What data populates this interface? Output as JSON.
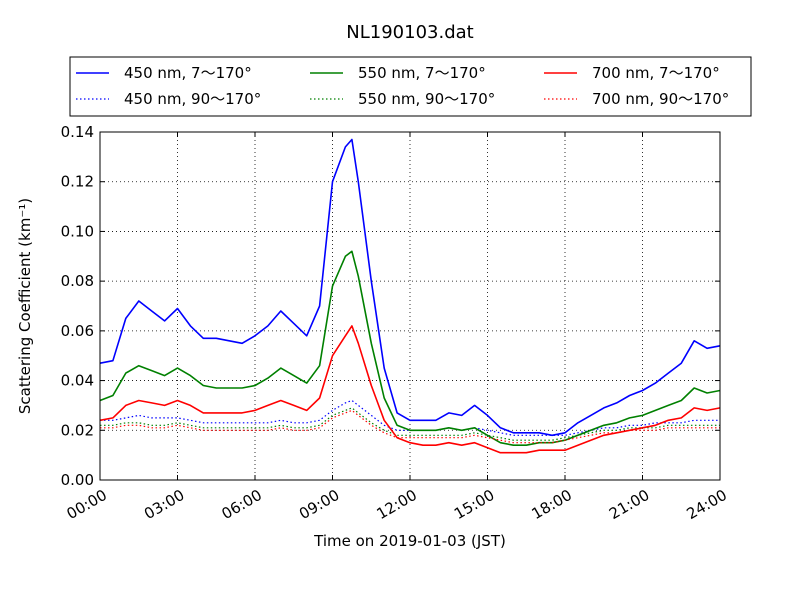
{
  "chart_data": {
    "type": "line",
    "title": "NL190103.dat",
    "xlabel": "Time on 2019-01-03 (JST)",
    "ylabel": "Scattering Coefficient (km⁻¹)",
    "xlim": [
      0,
      24
    ],
    "ylim": [
      0,
      0.14
    ],
    "x_ticks": [
      0,
      3,
      6,
      9,
      12,
      15,
      18,
      21,
      24
    ],
    "x_tick_labels": [
      "00:00",
      "03:00",
      "06:00",
      "09:00",
      "12:00",
      "15:00",
      "18:00",
      "21:00",
      "24:00"
    ],
    "y_ticks": [
      0,
      0.02,
      0.04,
      0.06,
      0.08,
      0.1,
      0.12,
      0.14
    ],
    "y_tick_labels": [
      "0.00",
      "0.02",
      "0.04",
      "0.06",
      "0.08",
      "0.10",
      "0.12",
      "0.14"
    ],
    "grid": true,
    "legend_position": "top",
    "x": [
      0.0,
      0.5,
      1.0,
      1.5,
      2.0,
      2.5,
      3.0,
      3.5,
      4.0,
      4.5,
      5.0,
      5.5,
      6.0,
      6.5,
      7.0,
      7.5,
      8.0,
      8.5,
      9.0,
      9.5,
      9.75,
      10.0,
      10.5,
      11.0,
      11.5,
      12.0,
      12.5,
      13.0,
      13.5,
      14.0,
      14.5,
      15.0,
      15.5,
      16.0,
      16.5,
      17.0,
      17.5,
      18.0,
      18.5,
      19.0,
      19.5,
      20.0,
      20.5,
      21.0,
      21.5,
      22.0,
      22.5,
      23.0,
      23.5,
      24.0
    ],
    "series": [
      {
        "name": "450 nm, 7～170°",
        "color": "#0000ff",
        "dash": "solid",
        "values": [
          0.047,
          0.048,
          0.065,
          0.072,
          0.068,
          0.064,
          0.069,
          0.062,
          0.057,
          0.057,
          0.056,
          0.055,
          0.058,
          0.062,
          0.068,
          0.063,
          0.058,
          0.07,
          0.12,
          0.134,
          0.137,
          0.12,
          0.08,
          0.045,
          0.027,
          0.024,
          0.024,
          0.024,
          0.027,
          0.026,
          0.03,
          0.026,
          0.021,
          0.019,
          0.019,
          0.019,
          0.018,
          0.019,
          0.023,
          0.026,
          0.029,
          0.031,
          0.034,
          0.036,
          0.039,
          0.043,
          0.047,
          0.056,
          0.053,
          0.054
        ]
      },
      {
        "name": "450 nm, 90～170°",
        "color": "#0000ff",
        "dash": "dotted",
        "values": [
          0.024,
          0.024,
          0.025,
          0.026,
          0.025,
          0.025,
          0.025,
          0.024,
          0.023,
          0.023,
          0.023,
          0.023,
          0.023,
          0.023,
          0.024,
          0.023,
          0.023,
          0.024,
          0.028,
          0.031,
          0.032,
          0.03,
          0.026,
          0.022,
          0.02,
          0.02,
          0.02,
          0.02,
          0.021,
          0.02,
          0.021,
          0.02,
          0.019,
          0.018,
          0.018,
          0.018,
          0.018,
          0.018,
          0.019,
          0.02,
          0.021,
          0.021,
          0.022,
          0.022,
          0.023,
          0.023,
          0.023,
          0.024,
          0.024,
          0.024
        ]
      },
      {
        "name": "550 nm, 7～170°",
        "color": "#008000",
        "dash": "solid",
        "values": [
          0.032,
          0.034,
          0.043,
          0.046,
          0.044,
          0.042,
          0.045,
          0.042,
          0.038,
          0.037,
          0.037,
          0.037,
          0.038,
          0.041,
          0.045,
          0.042,
          0.039,
          0.046,
          0.078,
          0.09,
          0.092,
          0.082,
          0.055,
          0.033,
          0.022,
          0.02,
          0.02,
          0.02,
          0.021,
          0.02,
          0.021,
          0.018,
          0.015,
          0.014,
          0.014,
          0.015,
          0.015,
          0.016,
          0.018,
          0.02,
          0.022,
          0.023,
          0.025,
          0.026,
          0.028,
          0.03,
          0.032,
          0.037,
          0.035,
          0.036
        ]
      },
      {
        "name": "550 nm, 90～170°",
        "color": "#008000",
        "dash": "dotted",
        "values": [
          0.022,
          0.022,
          0.023,
          0.023,
          0.022,
          0.022,
          0.023,
          0.022,
          0.021,
          0.021,
          0.021,
          0.021,
          0.021,
          0.021,
          0.022,
          0.021,
          0.021,
          0.022,
          0.026,
          0.028,
          0.029,
          0.027,
          0.023,
          0.02,
          0.018,
          0.018,
          0.018,
          0.018,
          0.018,
          0.018,
          0.019,
          0.018,
          0.017,
          0.016,
          0.016,
          0.016,
          0.016,
          0.017,
          0.018,
          0.019,
          0.02,
          0.02,
          0.021,
          0.021,
          0.021,
          0.022,
          0.022,
          0.022,
          0.022,
          0.022
        ]
      },
      {
        "name": "700 nm, 7～170°",
        "color": "#ff0000",
        "dash": "solid",
        "values": [
          0.024,
          0.025,
          0.03,
          0.032,
          0.031,
          0.03,
          0.032,
          0.03,
          0.027,
          0.027,
          0.027,
          0.027,
          0.028,
          0.03,
          0.032,
          0.03,
          0.028,
          0.033,
          0.05,
          0.058,
          0.062,
          0.055,
          0.038,
          0.024,
          0.017,
          0.015,
          0.014,
          0.014,
          0.015,
          0.014,
          0.015,
          0.013,
          0.011,
          0.011,
          0.011,
          0.012,
          0.012,
          0.012,
          0.014,
          0.016,
          0.018,
          0.019,
          0.02,
          0.021,
          0.022,
          0.024,
          0.025,
          0.029,
          0.028,
          0.029
        ]
      },
      {
        "name": "700 nm, 90～170°",
        "color": "#ff0000",
        "dash": "dotted",
        "values": [
          0.021,
          0.021,
          0.022,
          0.022,
          0.021,
          0.021,
          0.022,
          0.021,
          0.02,
          0.02,
          0.02,
          0.02,
          0.02,
          0.02,
          0.021,
          0.02,
          0.02,
          0.021,
          0.025,
          0.027,
          0.028,
          0.026,
          0.022,
          0.019,
          0.017,
          0.017,
          0.017,
          0.017,
          0.017,
          0.017,
          0.018,
          0.017,
          0.016,
          0.015,
          0.015,
          0.015,
          0.015,
          0.016,
          0.017,
          0.018,
          0.019,
          0.019,
          0.02,
          0.02,
          0.02,
          0.021,
          0.021,
          0.021,
          0.021,
          0.021
        ]
      }
    ]
  }
}
